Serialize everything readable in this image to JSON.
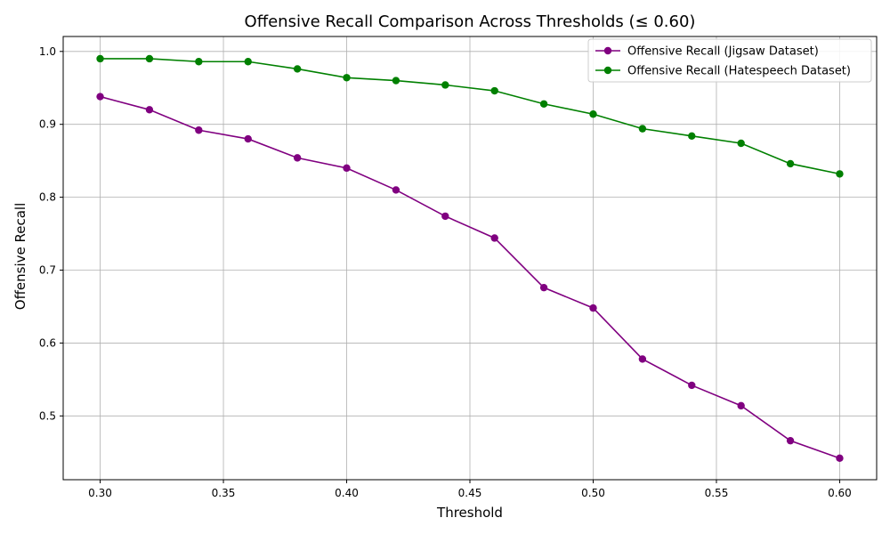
{
  "chart_data": {
    "type": "line",
    "title": "Offensive Recall Comparison Across Thresholds (≤ 0.60)",
    "xlabel": "Threshold",
    "ylabel": "Offensive Recall",
    "x": [
      0.3,
      0.32,
      0.34,
      0.36,
      0.38,
      0.4,
      0.42,
      0.44,
      0.46,
      0.48,
      0.5,
      0.52,
      0.54,
      0.56,
      0.58,
      0.6
    ],
    "xlim": [
      0.285,
      0.615
    ],
    "ylim": [
      0.4125,
      1.0205
    ],
    "xticks": [
      0.3,
      0.35,
      0.4,
      0.45,
      0.5,
      0.55,
      0.6
    ],
    "xtick_labels": [
      "0.30",
      "0.35",
      "0.40",
      "0.45",
      "0.50",
      "0.55",
      "0.60"
    ],
    "yticks": [
      0.5,
      0.6,
      0.7,
      0.8,
      0.9,
      1.0
    ],
    "ytick_labels": [
      "0.5",
      "0.6",
      "0.7",
      "0.8",
      "0.9",
      "1.0"
    ],
    "grid": true,
    "legend_position": "top-right",
    "series": [
      {
        "name": "Offensive Recall (Jigsaw Dataset)",
        "color": "#800080",
        "values": [
          0.938,
          0.92,
          0.892,
          0.88,
          0.854,
          0.84,
          0.81,
          0.774,
          0.744,
          0.676,
          0.648,
          0.578,
          0.542,
          0.514,
          0.466,
          0.442
        ]
      },
      {
        "name": "Offensive Recall (Hatespeech Dataset)",
        "color": "#008000",
        "values": [
          0.99,
          0.99,
          0.986,
          0.986,
          0.976,
          0.964,
          0.96,
          0.954,
          0.946,
          0.928,
          0.914,
          0.894,
          0.884,
          0.874,
          0.846,
          0.832
        ]
      }
    ]
  }
}
